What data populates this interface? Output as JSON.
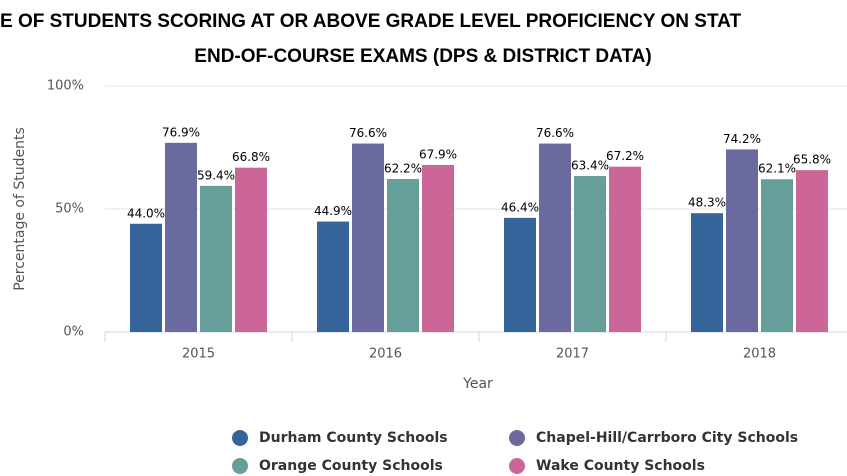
{
  "chart_data": {
    "type": "bar",
    "title": "E OF STUDENTS SCORING AT OR ABOVE GRADE LEVEL PROFICIENCY ON STAT",
    "subtitle": "END-OF-COURSE EXAMS (DPS & DISTRICT DATA)",
    "x_label": "Year",
    "y_label": "Percentage of Students",
    "categories": [
      "2015",
      "2016",
      "2017",
      "2018"
    ],
    "series": [
      {
        "name": "Durham County Schools",
        "color": "#35659a",
        "values": [
          44.0,
          44.9,
          46.4,
          48.3
        ],
        "value_labels": [
          "44.0%",
          "44.9%",
          "46.4%",
          "48.3%"
        ]
      },
      {
        "name": "Chapel-Hill/Carrboro City Schools",
        "color": "#6a6a9e",
        "values": [
          76.9,
          76.6,
          76.6,
          74.2
        ],
        "value_labels": [
          "76.9%",
          "76.6%",
          "76.6%",
          "74.2%"
        ]
      },
      {
        "name": "Orange County Schools",
        "color": "#669e9a",
        "values": [
          59.4,
          62.2,
          63.4,
          62.1
        ],
        "value_labels": [
          "59.4%",
          "62.2%",
          "63.4%",
          "62.1%"
        ]
      },
      {
        "name": "Wake County Schools",
        "color": "#cc6699",
        "values": [
          66.8,
          67.9,
          67.2,
          65.8
        ],
        "value_labels": [
          "66.8%",
          "67.9%",
          "67.2%",
          "65.8%"
        ]
      }
    ],
    "ylim": [
      0,
      100
    ],
    "yticks": [
      {
        "value": 0,
        "label": "0%"
      },
      {
        "value": 50,
        "label": "50%"
      },
      {
        "value": 100,
        "label": "100%"
      }
    ],
    "grid": true
  }
}
